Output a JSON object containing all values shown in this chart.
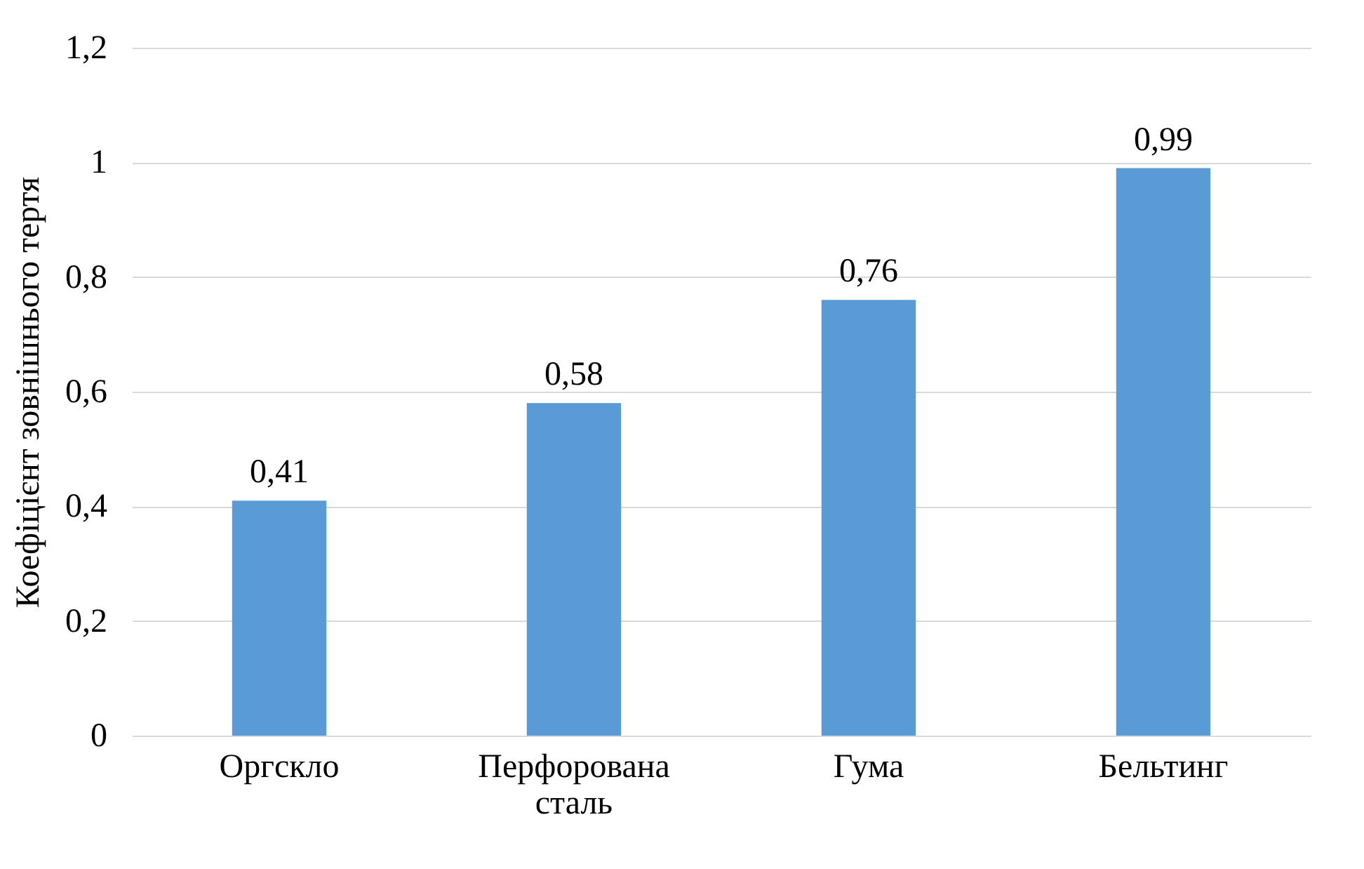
{
  "chart_data": {
    "type": "bar",
    "ylabel": "Коефіцієнт зовнішнього тертя",
    "categories": [
      "Оргскло",
      "Перфорована сталь",
      "Гума",
      "Бельтинг"
    ],
    "values": [
      0.41,
      0.58,
      0.76,
      0.99
    ],
    "color": "#5b9bd5",
    "value_labels": [
      "0,41",
      "0,58",
      "0,76",
      "0,99"
    ],
    "ylim": [
      0,
      1.2
    ],
    "yticks": [
      0,
      {
        "value": 0.2,
        "label": "0,2"
      },
      {
        "value": 0.4,
        "label": "0,4"
      },
      {
        "value": 0.6,
        "label": "0,6"
      },
      {
        "value": 0.8,
        "label": "0,8"
      },
      1,
      {
        "value": 1.2,
        "label": "1,2"
      }
    ],
    "grid": "y"
  }
}
